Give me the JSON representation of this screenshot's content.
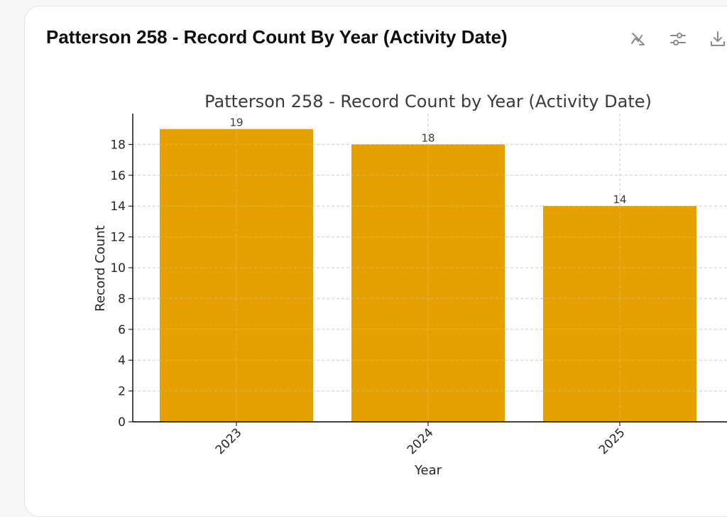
{
  "card": {
    "title": "Patterson 258 - Record Count By Year (Activity Date)"
  },
  "toolbar": {
    "icons": [
      "hide-chart-icon",
      "sliders-icon",
      "download-icon"
    ]
  },
  "colors": {
    "bar": "#E6A000",
    "grid": "#cccccc",
    "axis": "#000000"
  },
  "chart_data": {
    "type": "bar",
    "title": "Patterson 258 - Record Count by Year (Activity Date)",
    "xlabel": "Year",
    "ylabel": "Record Count",
    "categories": [
      "2023",
      "2024",
      "2025"
    ],
    "values": [
      19,
      18,
      14
    ],
    "data_labels": [
      "19",
      "18",
      "14"
    ],
    "ylim": [
      0,
      20
    ],
    "yticks": [
      "0",
      "2",
      "4",
      "6",
      "8",
      "10",
      "12",
      "14",
      "16",
      "18"
    ],
    "grid": true,
    "xtick_rotation_deg": 45
  }
}
